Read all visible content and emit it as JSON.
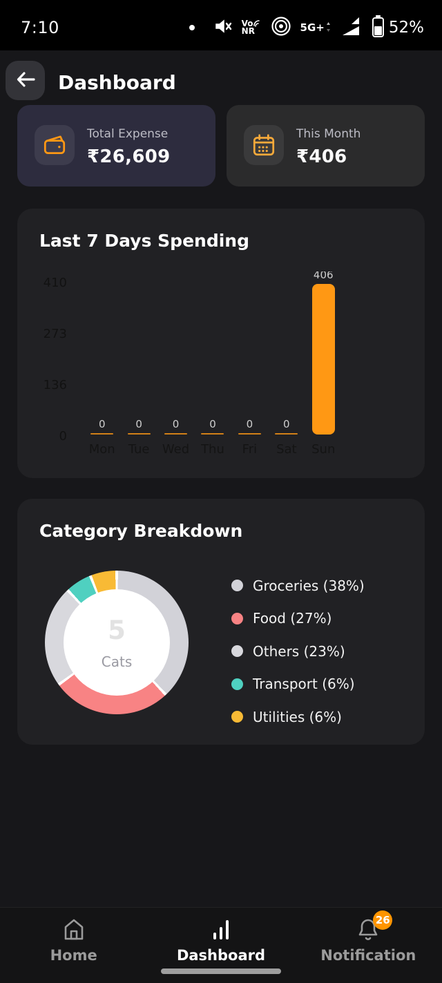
{
  "status_bar": {
    "time": "7:10",
    "vonr_top": "Vo",
    "vonr_bottom": "NR",
    "network_label": "5G+",
    "battery_percent": "52%",
    "battery_level": 52
  },
  "header": {
    "title": "Dashboard"
  },
  "summary_cards": [
    {
      "label": "Total Expense",
      "value": "₹26,609",
      "icon": "wallet-icon",
      "bg": "#2d2c3e"
    },
    {
      "label": "This Month",
      "value": "₹406",
      "icon": "calendar-icon",
      "bg": "#2b2b2c"
    }
  ],
  "chart_data": [
    {
      "type": "bar",
      "title": "Last 7 Days Spending",
      "categories": [
        "Mon",
        "Tue",
        "Wed",
        "Thu",
        "Fri",
        "Sat",
        "Sun"
      ],
      "values": [
        0,
        0,
        0,
        0,
        0,
        0,
        406
      ],
      "y_ticks": [
        0,
        136,
        273,
        410
      ],
      "ylim": [
        0,
        410
      ],
      "bar_color": "#FF9814",
      "value_labels_shown": true,
      "grid": false,
      "legend": "none"
    },
    {
      "type": "pie",
      "title": "Category Breakdown",
      "style": "doughnut",
      "center_value": "5",
      "center_label": "Cats",
      "border_color": "#ffffff",
      "legend_position": "right",
      "segments": [
        {
          "name": "Groceries",
          "label": "Groceries (38%)",
          "percent": 38,
          "color": "#d2d2d8"
        },
        {
          "name": "Food",
          "label": "Food (27%)",
          "percent": 27,
          "color": "#f88384"
        },
        {
          "name": "Others",
          "label": "Others (23%)",
          "percent": 23,
          "color": "#d8d8dd"
        },
        {
          "name": "Transport",
          "label": "Transport (6%)",
          "percent": 6,
          "color": "#4fd0c0"
        },
        {
          "name": "Utilities",
          "label": "Utilities (6%)",
          "percent": 6,
          "color": "#f8ba35"
        }
      ]
    }
  ],
  "bottom_nav": {
    "items": [
      {
        "label": "Home",
        "icon": "home-icon",
        "active": false
      },
      {
        "label": "Dashboard",
        "icon": "bar-chart-icon",
        "active": true
      },
      {
        "label": "Notification",
        "icon": "bell-icon",
        "active": false,
        "badge": "26"
      }
    ]
  },
  "colors": {
    "accent_orange": "#FF9814",
    "badge_orange": "#FF9500",
    "card_purple": "#2d2c3e",
    "panel_bg": "#212124"
  }
}
